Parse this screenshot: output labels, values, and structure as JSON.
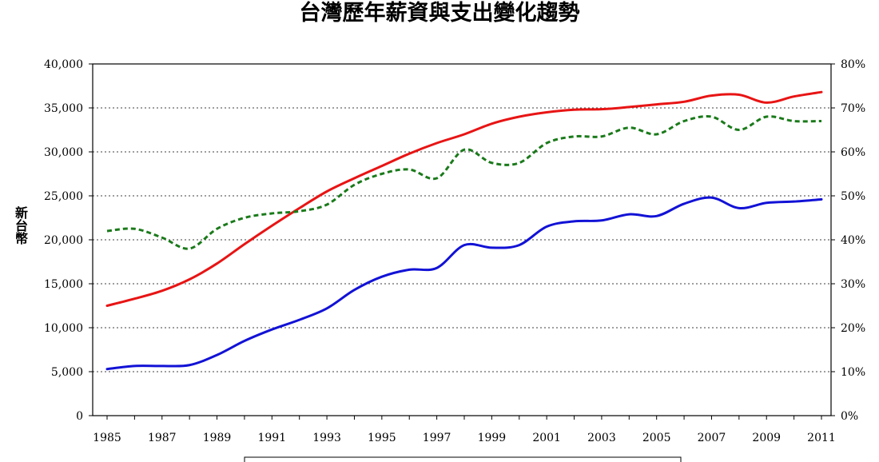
{
  "chart_data": {
    "type": "line",
    "title": "台灣歷年薪資與支出變化趨勢",
    "ylabel_left": "新台幣",
    "x": [
      1985,
      1986,
      1987,
      1988,
      1989,
      1990,
      1991,
      1992,
      1993,
      1994,
      1995,
      1996,
      1997,
      1998,
      1999,
      2000,
      2001,
      2002,
      2003,
      2004,
      2005,
      2006,
      2007,
      2008,
      2009,
      2010,
      2011
    ],
    "x_tick_labels": [
      "1985",
      "1987",
      "1989",
      "1991",
      "1993",
      "1995",
      "1997",
      "1999",
      "2001",
      "2003",
      "2005",
      "2007",
      "2009",
      "2011"
    ],
    "y_left_ticks": [
      "0",
      "5,000",
      "10,000",
      "15,000",
      "20,000",
      "25,000",
      "30,000",
      "35,000",
      "40,000"
    ],
    "y_right_ticks": [
      "0%",
      "10%",
      "20%",
      "30%",
      "40%",
      "50%",
      "60%",
      "70%",
      "80%"
    ],
    "ylim_left": [
      0,
      40000
    ],
    "ylim_right": [
      0,
      80
    ],
    "grid": "dashed horizontal",
    "colors": {
      "series1": "#e81414",
      "series2": "#1212d6",
      "series3": "#1a7a1a"
    },
    "series": [
      {
        "axis": "left",
        "style": "solid",
        "color": "#e81414",
        "values": [
          12500,
          13300,
          14200,
          15500,
          17300,
          19500,
          21600,
          23600,
          25500,
          27000,
          28400,
          29800,
          31000,
          32000,
          33200,
          34000,
          34500,
          34800,
          34850,
          35100,
          35400,
          35700,
          36400,
          36500,
          35600,
          36300,
          36800
        ]
      },
      {
        "axis": "left",
        "style": "solid",
        "color": "#1212d6",
        "values": [
          5300,
          5650,
          5650,
          5750,
          6900,
          8500,
          9800,
          10900,
          12200,
          14300,
          15800,
          16600,
          16800,
          19400,
          19100,
          19400,
          21500,
          22100,
          22200,
          22900,
          22700,
          24100,
          24800,
          23600,
          24200,
          24350,
          24600
        ]
      },
      {
        "axis": "right",
        "style": "dashed",
        "color": "#1a7a1a",
        "values": [
          42,
          42.5,
          40.5,
          38,
          42.5,
          45,
          46,
          46.5,
          48,
          52.5,
          55,
          56,
          54,
          60.5,
          57.5,
          57.5,
          62,
          63.5,
          63.5,
          65.5,
          64,
          67,
          68,
          65,
          68,
          67,
          67
        ]
      }
    ],
    "legend_box": "bottom-center"
  }
}
